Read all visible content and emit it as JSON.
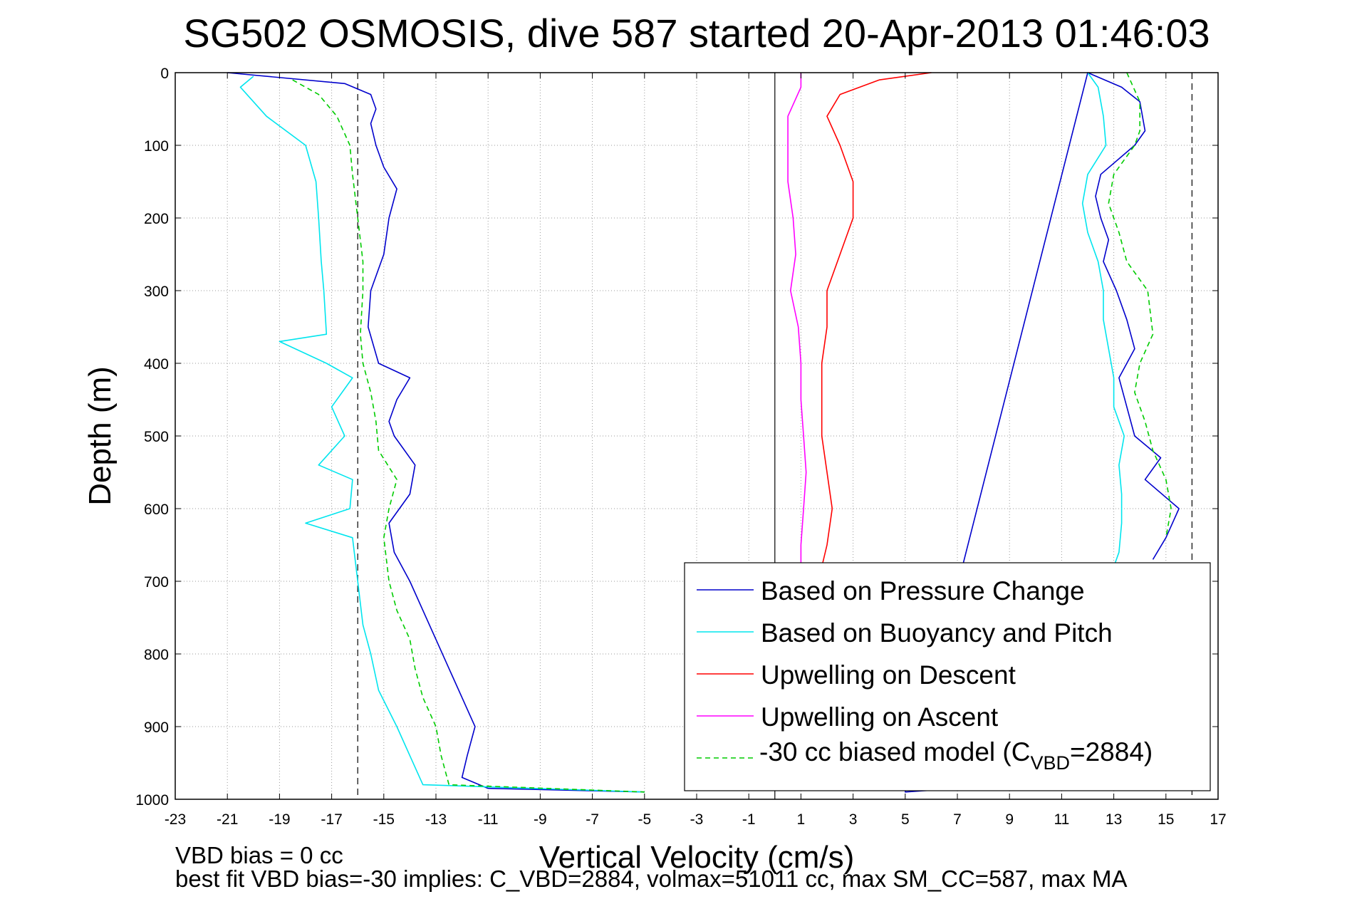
{
  "chart_data": {
    "type": "line",
    "title": "SG502 OSMOSIS, dive 587 started 20-Apr-2013 01:46:03",
    "xlabel": "Vertical Velocity (cm/s)",
    "ylabel": "Depth (m)",
    "xlim": [
      -23,
      17
    ],
    "ylim": [
      0,
      1000
    ],
    "y_reversed": true,
    "grid": true,
    "x_ticks": [
      -23,
      -21,
      -19,
      -17,
      -15,
      -13,
      -11,
      -9,
      -7,
      -5,
      -3,
      -1,
      1,
      3,
      5,
      7,
      9,
      11,
      13,
      15,
      17
    ],
    "y_ticks": [
      0,
      100,
      200,
      300,
      400,
      500,
      600,
      700,
      800,
      900,
      1000
    ],
    "vertical_lines": [
      {
        "x": -16,
        "style": "dashed"
      },
      {
        "x": 0,
        "style": "solid"
      },
      {
        "x": 16,
        "style": "dashed"
      }
    ],
    "legend_position": "bottom-right",
    "legend": [
      {
        "label": "Based on Pressure Change",
        "color": "#0000cc",
        "style": "solid"
      },
      {
        "label": "Based on Buoyancy and Pitch",
        "color": "#00e5ee",
        "style": "solid"
      },
      {
        "label": "Upwelling on Descent",
        "color": "#ff0000",
        "style": "solid"
      },
      {
        "label": "Upwelling on Ascent",
        "color": "#ff00ff",
        "style": "solid"
      },
      {
        "label_prefix": "-30 cc biased model (C",
        "label_sub": "VBD",
        "label_suffix": "=2884)",
        "color": "#00cc00",
        "style": "dashed"
      }
    ],
    "series": [
      {
        "key": "pressure_descent",
        "color": "#0000cc",
        "depth": [
          0,
          15,
          30,
          50,
          70,
          100,
          130,
          160,
          200,
          250,
          300,
          350,
          400,
          420,
          450,
          480,
          500,
          540,
          580,
          620,
          660,
          700,
          740,
          780,
          820,
          860,
          900,
          940,
          970,
          985,
          990
        ],
        "values": [
          -21,
          -16.5,
          -15.5,
          -15.3,
          -15.5,
          -15.3,
          -15.0,
          -14.5,
          -14.8,
          -15.0,
          -15.5,
          -15.6,
          -15.2,
          -14.0,
          -14.5,
          -14.8,
          -14.6,
          -13.8,
          -14.0,
          -14.8,
          -14.6,
          -14.0,
          -13.5,
          -13.0,
          -12.5,
          -12.0,
          -11.5,
          -11.8,
          -12.0,
          -11.0,
          -5.0
        ]
      },
      {
        "key": "pressure_ascent",
        "color": "#0000cc",
        "depth": [
          980,
          990,
          0,
          20,
          40,
          80,
          100,
          140,
          170,
          200,
          230,
          260,
          300,
          340,
          380,
          420,
          460,
          500,
          530,
          560,
          600,
          640,
          670
        ],
        "values": [
          9.0,
          5.0,
          12.0,
          13.3,
          14.0,
          14.2,
          13.8,
          12.5,
          12.3,
          12.5,
          12.8,
          12.6,
          13.1,
          13.5,
          13.8,
          13.2,
          13.5,
          13.8,
          14.8,
          14.2,
          15.5,
          15.0,
          14.5
        ]
      },
      {
        "key": "buoyancy_descent",
        "color": "#00e5ee",
        "depth": [
          5,
          20,
          60,
          100,
          150,
          200,
          260,
          300,
          360,
          370,
          400,
          420,
          460,
          500,
          540,
          560,
          600,
          620,
          640,
          700,
          760,
          800,
          850,
          900,
          940,
          980,
          990
        ],
        "values": [
          -20,
          -20.5,
          -19.5,
          -18.0,
          -17.6,
          -17.5,
          -17.4,
          -17.3,
          -17.2,
          -19.0,
          -17.2,
          -16.2,
          -17.0,
          -16.5,
          -17.5,
          -16.2,
          -16.3,
          -18.0,
          -16.2,
          -16.0,
          -15.8,
          -15.5,
          -15.2,
          -14.5,
          -14.0,
          -13.5,
          -5.0
        ]
      },
      {
        "key": "buoyancy_ascent",
        "color": "#00e5ee",
        "depth": [
          0,
          20,
          60,
          100,
          140,
          180,
          220,
          260,
          300,
          340,
          380,
          420,
          460,
          500,
          540,
          580,
          620,
          660,
          680
        ],
        "values": [
          12.0,
          12.4,
          12.6,
          12.7,
          12.0,
          11.8,
          12.0,
          12.4,
          12.6,
          12.6,
          12.8,
          13.0,
          13.0,
          13.4,
          13.2,
          13.3,
          13.3,
          13.2,
          13.0
        ]
      },
      {
        "key": "upwelling_descent",
        "color": "#ff0000",
        "depth": [
          0,
          10,
          30,
          60,
          100,
          150,
          200,
          250,
          300,
          350,
          400,
          450,
          500,
          550,
          600,
          650,
          680
        ],
        "values": [
          6.0,
          4.0,
          2.5,
          2.0,
          2.5,
          3.0,
          3.0,
          2.5,
          2.0,
          2.0,
          1.8,
          1.8,
          1.8,
          2.0,
          2.2,
          2.0,
          1.8
        ]
      },
      {
        "key": "upwelling_ascent",
        "color": "#ff00ff",
        "depth": [
          0,
          20,
          60,
          100,
          150,
          200,
          250,
          300,
          350,
          400,
          450,
          500,
          550,
          600,
          650,
          680
        ],
        "values": [
          1.0,
          1.0,
          0.5,
          0.5,
          0.5,
          0.7,
          0.8,
          0.6,
          0.9,
          1.0,
          1.0,
          1.1,
          1.2,
          1.1,
          1.0,
          1.0
        ]
      },
      {
        "key": "model_descent",
        "color": "#00cc00",
        "depth": [
          10,
          30,
          60,
          100,
          140,
          200,
          260,
          300,
          360,
          400,
          440,
          480,
          520,
          560,
          600,
          640,
          700,
          740,
          780,
          820,
          860,
          900,
          940,
          980,
          990
        ],
        "values": [
          -18.5,
          -17.5,
          -16.8,
          -16.3,
          -16.2,
          -16.0,
          -15.8,
          -15.8,
          -15.9,
          -15.8,
          -15.5,
          -15.3,
          -15.2,
          -14.5,
          -14.8,
          -15.0,
          -14.8,
          -14.5,
          -14.0,
          -13.8,
          -13.5,
          -13.0,
          -12.8,
          -12.5,
          -5.0
        ]
      },
      {
        "key": "model_ascent",
        "color": "#00cc00",
        "depth": [
          0,
          40,
          80,
          100,
          140,
          180,
          220,
          260,
          300,
          360,
          400,
          440,
          480,
          520,
          560,
          600,
          640
        ],
        "values": [
          13.5,
          14.0,
          14.0,
          13.8,
          13.0,
          12.8,
          13.2,
          13.5,
          14.3,
          14.5,
          14.0,
          13.8,
          14.2,
          14.5,
          15.0,
          15.2,
          15.0
        ]
      }
    ]
  },
  "footer": {
    "line1": "VBD bias = 0 cc",
    "line2": "best fit VBD bias=-30 implies: C_VBD=2884, volmax=51011 cc, max SM_CC=587, max MA"
  }
}
